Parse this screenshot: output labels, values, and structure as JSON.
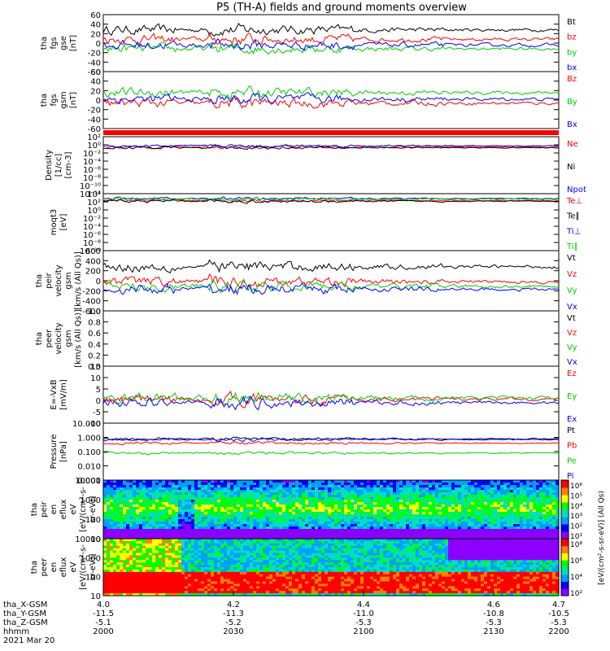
{
  "chart_data": {
    "type": "line",
    "title": "P5 (TH-A) fields and ground moments overview",
    "x_axis": {
      "tick_labels": [
        "4.0",
        "4.2",
        "4.4",
        "4.6",
        "4.7"
      ],
      "rows": [
        {
          "label": "tha_X-GSM",
          "values": [
            "4.0",
            "4.2",
            "4.4",
            "4.6",
            "4.7"
          ]
        },
        {
          "label": "tha_Y-GSM",
          "values": [
            "-11.5",
            "-11.3",
            "-11.0",
            "-10.8",
            "-10.5"
          ]
        },
        {
          "label": "tha_Z-GSM",
          "values": [
            "-5.1",
            "-5.2",
            "-5.3",
            "-5.3",
            "-5.3"
          ]
        },
        {
          "label": "hhmm",
          "values": [
            "2000",
            "2030",
            "2100",
            "2130",
            "2200"
          ]
        }
      ],
      "date": "2021 Mar 20"
    },
    "panels": [
      {
        "type": "line",
        "ylabel": [
          "tha",
          "fgs",
          "gse",
          "[nT]"
        ],
        "ylim": [
          -60,
          60
        ],
        "yticks": [
          "60",
          "40",
          "20",
          "0",
          "-20",
          "-40",
          "-60"
        ],
        "legend": [
          {
            "name": "Bt",
            "color": "#000000"
          },
          {
            "name": "bz",
            "color": "#ff0000"
          },
          {
            "name": "by",
            "color": "#00cc00"
          },
          {
            "name": "bx",
            "color": "#0000ff"
          }
        ],
        "series_means": [
          28,
          8,
          -12,
          -4
        ]
      },
      {
        "type": "line",
        "ylabel": [
          "tha",
          "fgs",
          "gsm",
          "[nT]"
        ],
        "ylim": [
          -70,
          60
        ],
        "yticks": [
          "60",
          "40",
          "20",
          "0",
          "-20",
          "-40",
          "-60"
        ],
        "legend": [
          {
            "name": "Bz",
            "color": "#ff0000"
          },
          {
            "name": "By",
            "color": "#00cc00"
          },
          {
            "name": "Bx",
            "color": "#0000ff"
          }
        ],
        "series_means": [
          -12,
          12,
          -3
        ]
      },
      {
        "type": "line",
        "ylabel": [
          "Density",
          "[1/cc]",
          "[cm-3]"
        ],
        "log": true,
        "ylim_exp": [
          -12,
          3
        ],
        "yticks": [
          "10²",
          "10⁰",
          "10⁻²",
          "10⁻⁴",
          "10⁻⁶",
          "10⁻⁸",
          "10⁻¹⁰",
          "10⁻¹²"
        ],
        "legend": [
          {
            "name": "Ne",
            "color": "#ff0000"
          },
          {
            "name": "Ni",
            "color": "#000000"
          },
          {
            "name": "Npot",
            "color": "#0000ff"
          }
        ],
        "series_means": [
          0.3,
          0.1,
          0.6
        ]
      },
      {
        "type": "line",
        "ylabel": [
          "moqt3",
          "[eV]"
        ],
        "log": true,
        "ylim_exp": [
          -10,
          5
        ],
        "yticks": [
          "10⁴",
          "10²",
          "10⁰",
          "10⁻²",
          "10⁻⁴",
          "10⁻⁶",
          "10⁻⁸",
          "10⁻¹⁰"
        ],
        "legend": [
          {
            "name": "Te⊥",
            "color": "#ff0000"
          },
          {
            "name": "Te∥",
            "color": "#000000"
          },
          {
            "name": "Ti⊥",
            "color": "#0000ff"
          },
          {
            "name": "Ti∥",
            "color": "#00cc00"
          }
        ],
        "series_means": [
          3.2,
          3.0,
          3.7,
          3.6
        ]
      },
      {
        "type": "line",
        "ylabel": [
          "tha",
          "peir",
          "velocity",
          "gsm",
          "[km/s (All Qs)]"
        ],
        "ylim": [
          -600,
          600
        ],
        "yticks": [
          "600",
          "400",
          "200",
          "0",
          "-200",
          "-400",
          "-600"
        ],
        "legend": [
          {
            "name": "Vt",
            "color": "#000000"
          },
          {
            "name": "Vz",
            "color": "#ff0000"
          },
          {
            "name": "Vy",
            "color": "#00cc00"
          },
          {
            "name": "Vx",
            "color": "#0000ff"
          }
        ],
        "series_means": [
          280,
          -20,
          -110,
          -170
        ]
      },
      {
        "type": "line",
        "ylabel": [
          "tha",
          "peer",
          "velocity",
          "gsm",
          "[km/s (All Qs)]"
        ],
        "ylim": [
          0,
          1
        ],
        "yticks": [
          "1.0",
          "0.8",
          "0.6",
          "0.4",
          "0.2",
          "0.0"
        ],
        "legend": [
          {
            "name": "Vt",
            "color": "#000000"
          },
          {
            "name": "Vz",
            "color": "#ff0000"
          },
          {
            "name": "Vy",
            "color": "#00cc00"
          },
          {
            "name": "Vx",
            "color": "#0000ff"
          }
        ]
      },
      {
        "type": "line",
        "ylabel": [
          "E=-VxB",
          "[mV/m]"
        ],
        "ylim": [
          -10,
          15
        ],
        "yticks": [
          "15",
          "10",
          "5",
          "0",
          "-5",
          "-10"
        ],
        "legend": [
          {
            "name": "Ez",
            "color": "#ff0000"
          },
          {
            "name": "Ey",
            "color": "#00cc00"
          },
          {
            "name": "Ex",
            "color": "#0000ff"
          }
        ],
        "series_means": [
          0.5,
          1.0,
          -1.0
        ]
      },
      {
        "type": "line",
        "ylabel": [
          "Pressure",
          "[nPa]"
        ],
        "log": true,
        "ylim_exp": [
          -3,
          1
        ],
        "yticks": [
          "10.000",
          "1.000",
          "0.100",
          "0.010",
          "0.001"
        ],
        "legend": [
          {
            "name": "Pt",
            "color": "#000000"
          },
          {
            "name": "Pb",
            "color": "#ff0000"
          },
          {
            "name": "Pe",
            "color": "#00cc00"
          },
          {
            "name": "Pi",
            "color": "#0000ff"
          }
        ],
        "series_means": [
          -0.1,
          -0.4,
          -1.1,
          -0.15
        ]
      },
      {
        "type": "heatmap",
        "ylabel": [
          "tha",
          "peir",
          "en",
          "eflux",
          "eV",
          "[eV/(cm²-s-",
          "sr-eV)]"
        ],
        "yticks": [
          "10000",
          "1000",
          "100",
          "10"
        ]
      },
      {
        "type": "heatmap",
        "ylabel": [
          "tha",
          "peer",
          "en",
          "eflux",
          "eV",
          "[eV/(cm²-s-",
          "sr-eV)]"
        ],
        "yticks": [
          "10000",
          "1000",
          "100",
          "10"
        ]
      }
    ],
    "colorbar": {
      "label": "[eV/(cm²-s-sr-eV)] (All Qs)",
      "upper_ticks": [
        "10⁶",
        "10⁵",
        "10⁴",
        "10³",
        "10²",
        "10¹"
      ],
      "lower_ticks": [
        "10⁸",
        "10⁶",
        "10⁴",
        "10²"
      ],
      "colors": [
        "#8b00ff",
        "#0000ff",
        "#00a0ff",
        "#00e0c0",
        "#00ff00",
        "#ffff00",
        "#ff8000",
        "#ff0000"
      ]
    }
  }
}
